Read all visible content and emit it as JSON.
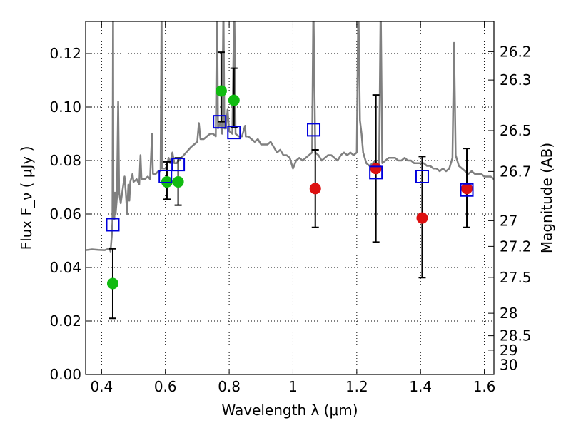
{
  "chart_data": {
    "type": "scatter",
    "xlabel": "Wavelength  λ (μm)",
    "ylabel": "Flux  F_ν  ( μJy )",
    "ylabel_right": "Magnitude (AB)",
    "xlim": [
      0.35,
      1.63
    ],
    "ylim": [
      0.0,
      0.132
    ],
    "grid": true,
    "grid_style": "dotted",
    "x_ticks": [
      0.4,
      0.6,
      0.8,
      1.0,
      1.2,
      1.4,
      1.6
    ],
    "x_tick_labels": [
      "0.4",
      "0.6",
      "0.8",
      "1",
      "1.2",
      "1.4",
      "1.6"
    ],
    "y_ticks": [
      0.0,
      0.02,
      0.04,
      0.06,
      0.08,
      0.1,
      0.12
    ],
    "y_tick_labels": [
      "0.00",
      "0.02",
      "0.04",
      "0.06",
      "0.08",
      "0.10",
      "0.12"
    ],
    "right_ticks": [
      {
        "label": "26.2",
        "flux": 0.1207
      },
      {
        "label": "26.3",
        "flux": 0.1101
      },
      {
        "label": "26.5",
        "flux": 0.0912
      },
      {
        "label": "26.7",
        "flux": 0.0759
      },
      {
        "label": "27",
        "flux": 0.0575
      },
      {
        "label": "27.2",
        "flux": 0.0479
      },
      {
        "label": "27.5",
        "flux": 0.0363
      },
      {
        "label": "28",
        "flux": 0.0229
      },
      {
        "label": "28.5",
        "flux": 0.0145
      },
      {
        "label": "29",
        "flux": 0.0091
      },
      {
        "label": "30",
        "flux": 0.0036
      }
    ],
    "colors": {
      "spectrum": "#808080",
      "green_points": "#11bb11",
      "red_points": "#dd1111",
      "model_squares": "#0000dd",
      "error_bars": "#000000"
    },
    "spectrum": [
      [
        0.35,
        0.0465
      ],
      [
        0.37,
        0.0468
      ],
      [
        0.39,
        0.0466
      ],
      [
        0.41,
        0.0465
      ],
      [
        0.425,
        0.0472
      ],
      [
        0.428,
        0.046
      ],
      [
        0.432,
        0.052
      ],
      [
        0.434,
        0.057
      ],
      [
        0.436,
        0.14
      ],
      [
        0.437,
        0.058
      ],
      [
        0.44,
        0.058
      ],
      [
        0.442,
        0.068
      ],
      [
        0.444,
        0.06
      ],
      [
        0.448,
        0.066
      ],
      [
        0.452,
        0.102
      ],
      [
        0.455,
        0.068
      ],
      [
        0.46,
        0.064
      ],
      [
        0.467,
        0.07
      ],
      [
        0.472,
        0.074
      ],
      [
        0.476,
        0.068
      ],
      [
        0.48,
        0.06
      ],
      [
        0.484,
        0.071
      ],
      [
        0.487,
        0.065
      ],
      [
        0.49,
        0.072
      ],
      [
        0.497,
        0.075
      ],
      [
        0.5,
        0.072
      ],
      [
        0.51,
        0.073
      ],
      [
        0.518,
        0.071
      ],
      [
        0.522,
        0.082
      ],
      [
        0.525,
        0.073
      ],
      [
        0.535,
        0.073
      ],
      [
        0.545,
        0.074
      ],
      [
        0.552,
        0.073
      ],
      [
        0.558,
        0.09
      ],
      [
        0.561,
        0.075
      ],
      [
        0.57,
        0.075
      ],
      [
        0.578,
        0.076
      ],
      [
        0.585,
        0.076
      ],
      [
        0.588,
        0.14
      ],
      [
        0.59,
        0.077
      ],
      [
        0.6,
        0.077
      ],
      [
        0.605,
        0.078
      ],
      [
        0.61,
        0.081
      ],
      [
        0.615,
        0.079
      ],
      [
        0.622,
        0.083
      ],
      [
        0.628,
        0.079
      ],
      [
        0.635,
        0.079
      ],
      [
        0.65,
        0.081
      ],
      [
        0.665,
        0.083
      ],
      [
        0.68,
        0.085
      ],
      [
        0.69,
        0.086
      ],
      [
        0.7,
        0.087
      ],
      [
        0.705,
        0.094
      ],
      [
        0.71,
        0.088
      ],
      [
        0.72,
        0.088
      ],
      [
        0.73,
        0.089
      ],
      [
        0.74,
        0.09
      ],
      [
        0.75,
        0.09
      ],
      [
        0.758,
        0.089
      ],
      [
        0.762,
        0.14
      ],
      [
        0.765,
        0.092
      ],
      [
        0.772,
        0.094
      ],
      [
        0.778,
        0.09
      ],
      [
        0.782,
        0.14
      ],
      [
        0.785,
        0.092
      ],
      [
        0.79,
        0.092
      ],
      [
        0.795,
        0.099
      ],
      [
        0.8,
        0.091
      ],
      [
        0.81,
        0.09
      ],
      [
        0.816,
        0.14
      ],
      [
        0.82,
        0.09
      ],
      [
        0.83,
        0.089
      ],
      [
        0.84,
        0.089
      ],
      [
        0.85,
        0.093
      ],
      [
        0.852,
        0.089
      ],
      [
        0.86,
        0.089
      ],
      [
        0.87,
        0.088
      ],
      [
        0.88,
        0.087
      ],
      [
        0.89,
        0.088
      ],
      [
        0.9,
        0.086
      ],
      [
        0.91,
        0.086
      ],
      [
        0.92,
        0.086
      ],
      [
        0.93,
        0.087
      ],
      [
        0.94,
        0.085
      ],
      [
        0.95,
        0.083
      ],
      [
        0.96,
        0.084
      ],
      [
        0.97,
        0.082
      ],
      [
        0.98,
        0.082
      ],
      [
        0.99,
        0.081
      ],
      [
        1.0,
        0.077
      ],
      [
        1.01,
        0.08
      ],
      [
        1.02,
        0.081
      ],
      [
        1.03,
        0.08
      ],
      [
        1.04,
        0.081
      ],
      [
        1.05,
        0.082
      ],
      [
        1.06,
        0.083
      ],
      [
        1.064,
        0.14
      ],
      [
        1.07,
        0.083
      ],
      [
        1.08,
        0.082
      ],
      [
        1.09,
        0.08
      ],
      [
        1.1,
        0.081
      ],
      [
        1.11,
        0.082
      ],
      [
        1.12,
        0.082
      ],
      [
        1.13,
        0.081
      ],
      [
        1.14,
        0.08
      ],
      [
        1.15,
        0.082
      ],
      [
        1.16,
        0.083
      ],
      [
        1.17,
        0.082
      ],
      [
        1.18,
        0.083
      ],
      [
        1.19,
        0.082
      ],
      [
        1.2,
        0.083
      ],
      [
        1.205,
        0.14
      ],
      [
        1.21,
        0.095
      ],
      [
        1.215,
        0.09
      ],
      [
        1.22,
        0.083
      ],
      [
        1.23,
        0.079
      ],
      [
        1.24,
        0.078
      ],
      [
        1.25,
        0.079
      ],
      [
        1.26,
        0.08
      ],
      [
        1.265,
        0.076
      ],
      [
        1.27,
        0.078
      ],
      [
        1.275,
        0.14
      ],
      [
        1.28,
        0.079
      ],
      [
        1.29,
        0.08
      ],
      [
        1.3,
        0.081
      ],
      [
        1.31,
        0.081
      ],
      [
        1.32,
        0.081
      ],
      [
        1.33,
        0.08
      ],
      [
        1.34,
        0.08
      ],
      [
        1.35,
        0.081
      ],
      [
        1.36,
        0.08
      ],
      [
        1.37,
        0.08
      ],
      [
        1.38,
        0.079
      ],
      [
        1.39,
        0.079
      ],
      [
        1.4,
        0.079
      ],
      [
        1.41,
        0.079
      ],
      [
        1.42,
        0.078
      ],
      [
        1.43,
        0.078
      ],
      [
        1.44,
        0.077
      ],
      [
        1.45,
        0.077
      ],
      [
        1.46,
        0.076
      ],
      [
        1.47,
        0.077
      ],
      [
        1.48,
        0.076
      ],
      [
        1.49,
        0.077
      ],
      [
        1.5,
        0.081
      ],
      [
        1.505,
        0.124
      ],
      [
        1.51,
        0.082
      ],
      [
        1.52,
        0.078
      ],
      [
        1.53,
        0.077
      ],
      [
        1.54,
        0.076
      ],
      [
        1.55,
        0.075
      ],
      [
        1.56,
        0.076
      ],
      [
        1.57,
        0.075
      ],
      [
        1.58,
        0.075
      ],
      [
        1.59,
        0.075
      ],
      [
        1.6,
        0.074
      ],
      [
        1.61,
        0.074
      ],
      [
        1.62,
        0.074
      ],
      [
        1.63,
        0.073
      ]
    ],
    "green_points": [
      {
        "x": 0.435,
        "y": 0.034,
        "err": 0.013
      },
      {
        "x": 0.605,
        "y": 0.072,
        "err": 0.007
      },
      {
        "x": 0.64,
        "y": 0.072,
        "err": 0.009
      },
      {
        "x": 0.775,
        "y": 0.106,
        "err": 0.0
      },
      {
        "x": 0.815,
        "y": 0.1025,
        "err": 0.0
      }
    ],
    "red_points": [
      {
        "x": 1.07,
        "y": 0.0695,
        "err": 0.0145
      },
      {
        "x": 1.26,
        "y": 0.077,
        "err": 0.0
      },
      {
        "x": 1.405,
        "y": 0.0585,
        "err": 0.0
      },
      {
        "x": 1.545,
        "y": 0.0695,
        "err": 0.0
      }
    ],
    "model_squares": [
      {
        "x": 0.435,
        "y": 0.056
      },
      {
        "x": 0.6,
        "y": 0.074
      },
      {
        "x": 0.64,
        "y": 0.0785
      },
      {
        "x": 0.77,
        "y": 0.0945
      },
      {
        "x": 0.815,
        "y": 0.0905
      },
      {
        "x": 1.065,
        "y": 0.0915
      },
      {
        "x": 1.26,
        "y": 0.0755
      },
      {
        "x": 1.405,
        "y": 0.074
      },
      {
        "x": 1.545,
        "y": 0.069
      }
    ],
    "error_bars": [
      {
        "x": 0.435,
        "lo": 0.021,
        "hi": 0.047
      },
      {
        "x": 0.605,
        "lo": 0.0655,
        "hi": 0.0795
      },
      {
        "x": 0.64,
        "lo": 0.0633,
        "hi": 0.081
      },
      {
        "x": 0.775,
        "lo": 0.0945,
        "hi": 0.1205
      },
      {
        "x": 0.815,
        "lo": 0.0925,
        "hi": 0.1145
      },
      {
        "x": 1.07,
        "lo": 0.055,
        "hi": 0.084
      },
      {
        "x": 1.26,
        "lo": 0.0495,
        "hi": 0.1045
      },
      {
        "x": 1.405,
        "lo": 0.0362,
        "hi": 0.0815
      },
      {
        "x": 1.545,
        "lo": 0.055,
        "hi": 0.0845
      }
    ]
  }
}
